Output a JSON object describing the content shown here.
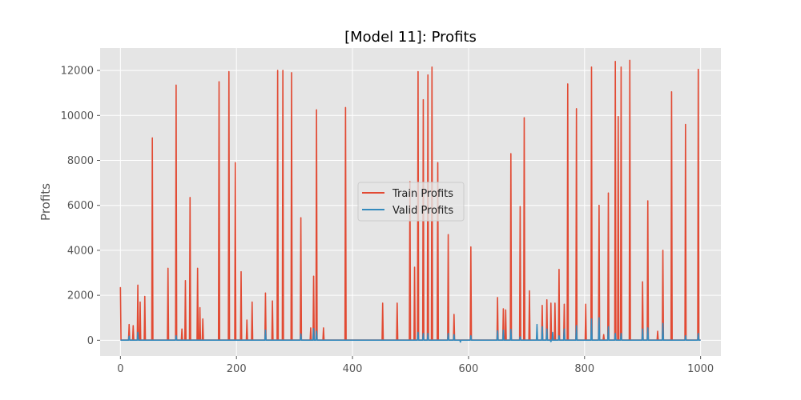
{
  "chart_data": {
    "type": "line",
    "title": "[Model 11]: Profits",
    "xlabel": "",
    "ylabel": "Profits",
    "xlim": [
      -35,
      1035
    ],
    "ylim": [
      -700,
      13000
    ],
    "xticks": [
      0,
      200,
      400,
      600,
      800,
      1000
    ],
    "yticks": [
      0,
      2000,
      4000,
      6000,
      8000,
      10000,
      12000
    ],
    "xtick_labels": [
      "0",
      "200",
      "400",
      "600",
      "800",
      "1000"
    ],
    "ytick_labels": [
      "0",
      "2000",
      "4000",
      "6000",
      "8000",
      "10000",
      "12000"
    ],
    "grid": true,
    "legend_position": "center",
    "series": [
      {
        "name": "Train Profits",
        "color": "#E24A33",
        "baseline": 10,
        "points": [
          [
            0,
            2350
          ],
          [
            15,
            700
          ],
          [
            22,
            650
          ],
          [
            30,
            2450
          ],
          [
            34,
            1700
          ],
          [
            42,
            1950
          ],
          [
            55,
            9000
          ],
          [
            82,
            3200
          ],
          [
            96,
            11350
          ],
          [
            106,
            500
          ],
          [
            112,
            2650
          ],
          [
            120,
            6350
          ],
          [
            133,
            3200
          ],
          [
            137,
            1450
          ],
          [
            142,
            950
          ],
          [
            170,
            11500
          ],
          [
            187,
            11950
          ],
          [
            198,
            7900
          ],
          [
            208,
            3050
          ],
          [
            218,
            900
          ],
          [
            227,
            1700
          ],
          [
            250,
            2100
          ],
          [
            262,
            1750
          ],
          [
            271,
            12000
          ],
          [
            280,
            12000
          ],
          [
            295,
            11900
          ],
          [
            311,
            5450
          ],
          [
            328,
            550
          ],
          [
            333,
            2850
          ],
          [
            338,
            10250
          ],
          [
            350,
            550
          ],
          [
            388,
            10350
          ],
          [
            452,
            1650
          ],
          [
            477,
            1650
          ],
          [
            499,
            7050
          ],
          [
            507,
            3250
          ],
          [
            513,
            11950
          ],
          [
            522,
            10700
          ],
          [
            530,
            11800
          ],
          [
            537,
            12150
          ],
          [
            547,
            7900
          ],
          [
            565,
            4700
          ],
          [
            575,
            1150
          ],
          [
            604,
            4150
          ],
          [
            650,
            1900
          ],
          [
            660,
            1400
          ],
          [
            664,
            1350
          ],
          [
            673,
            8300
          ],
          [
            689,
            5950
          ],
          [
            696,
            9900
          ],
          [
            705,
            2200
          ],
          [
            727,
            1550
          ],
          [
            735,
            1800
          ],
          [
            742,
            1650
          ],
          [
            749,
            1650
          ],
          [
            756,
            3150
          ],
          [
            765,
            1600
          ],
          [
            771,
            11400
          ],
          [
            786,
            10300
          ],
          [
            802,
            1600
          ],
          [
            812,
            12150
          ],
          [
            825,
            6000
          ],
          [
            833,
            250
          ],
          [
            841,
            6550
          ],
          [
            853,
            12400
          ],
          [
            858,
            9950
          ],
          [
            863,
            12150
          ],
          [
            878,
            12450
          ],
          [
            900,
            2600
          ],
          [
            909,
            6200
          ],
          [
            926,
            400
          ],
          [
            935,
            4000
          ],
          [
            950,
            11050
          ],
          [
            974,
            9600
          ],
          [
            996,
            12050
          ]
        ]
      },
      {
        "name": "Valid Profits",
        "color": "#348ABD",
        "baseline": 5,
        "points": [
          [
            15,
            180
          ],
          [
            30,
            350
          ],
          [
            96,
            200
          ],
          [
            250,
            450
          ],
          [
            311,
            280
          ],
          [
            333,
            520
          ],
          [
            338,
            400
          ],
          [
            513,
            350
          ],
          [
            522,
            300
          ],
          [
            530,
            300
          ],
          [
            565,
            300
          ],
          [
            575,
            250
          ],
          [
            586,
            -80
          ],
          [
            604,
            200
          ],
          [
            650,
            420
          ],
          [
            660,
            450
          ],
          [
            673,
            480
          ],
          [
            689,
            150
          ],
          [
            718,
            700
          ],
          [
            727,
            600
          ],
          [
            735,
            500
          ],
          [
            742,
            -60
          ],
          [
            745,
            350
          ],
          [
            756,
            200
          ],
          [
            765,
            500
          ],
          [
            786,
            650
          ],
          [
            812,
            950
          ],
          [
            825,
            1000
          ],
          [
            841,
            600
          ],
          [
            853,
            300
          ],
          [
            863,
            300
          ],
          [
            900,
            500
          ],
          [
            909,
            550
          ],
          [
            935,
            750
          ],
          [
            974,
            200
          ],
          [
            996,
            300
          ]
        ]
      }
    ]
  }
}
